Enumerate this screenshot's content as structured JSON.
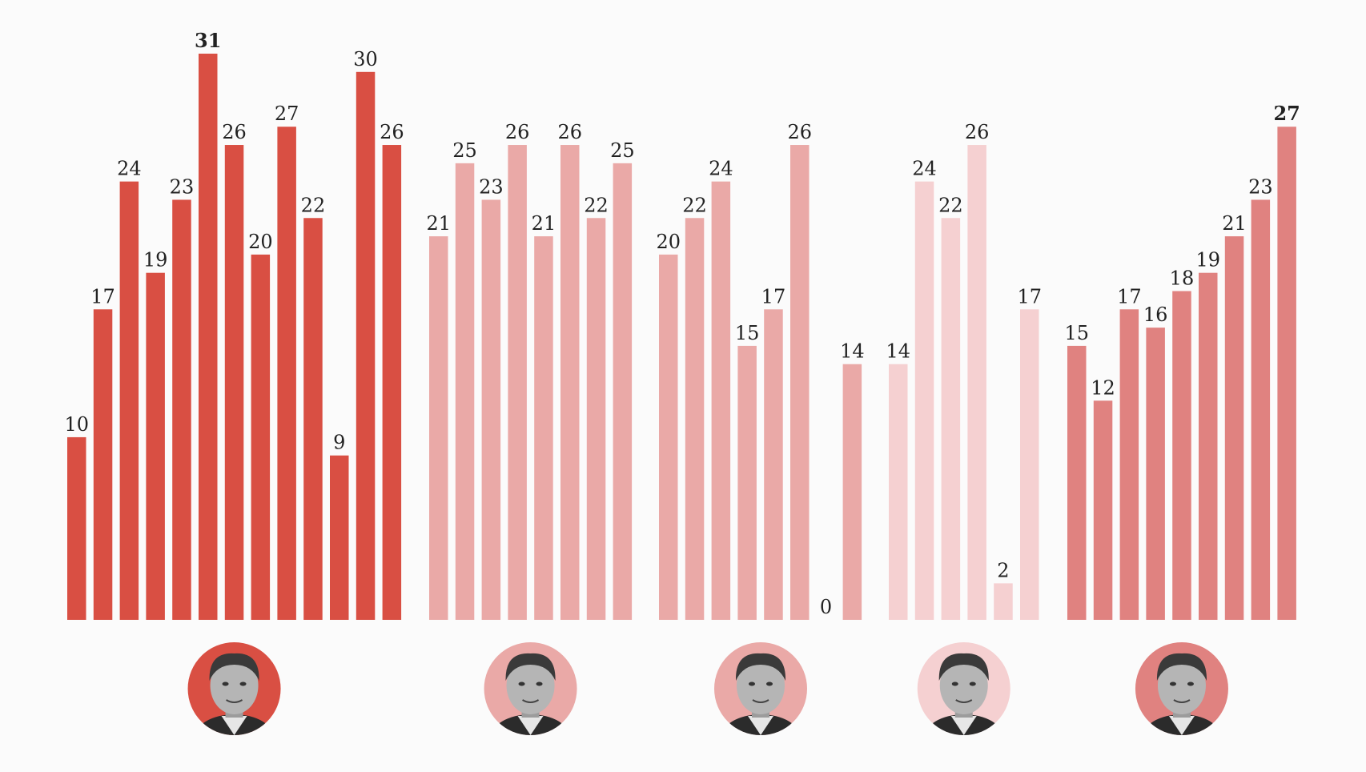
{
  "chart_data": {
    "type": "bar",
    "ylim": [
      0,
      31
    ],
    "grid": false,
    "legend": "none",
    "groups": [
      {
        "portrait": "portrait-1",
        "color": "#d94f43",
        "portrait_bg": "#d94f43",
        "values": [
          10,
          17,
          24,
          19,
          23,
          31,
          26,
          20,
          27,
          22,
          9,
          30,
          26
        ],
        "highlight_index": 5
      },
      {
        "portrait": "portrait-2",
        "color": "#eaa9a7",
        "portrait_bg": "#eaa9a7",
        "values": [
          21,
          25,
          23,
          26,
          21,
          26,
          22,
          25
        ]
      },
      {
        "portrait": "portrait-3",
        "color": "#eaa9a7",
        "portrait_bg": "#eaa9a7",
        "values": [
          20,
          22,
          24,
          15,
          17,
          26,
          0,
          14
        ]
      },
      {
        "portrait": "portrait-4",
        "color": "#f5d0d1",
        "portrait_bg": "#f5d0d1",
        "values": [
          14,
          24,
          22,
          26,
          2,
          17
        ]
      },
      {
        "portrait": "portrait-5",
        "color": "#e08280",
        "portrait_bg": "#e08280",
        "values": [
          15,
          12,
          17,
          16,
          18,
          19,
          21,
          23,
          27
        ],
        "highlight_index": 8
      }
    ]
  }
}
